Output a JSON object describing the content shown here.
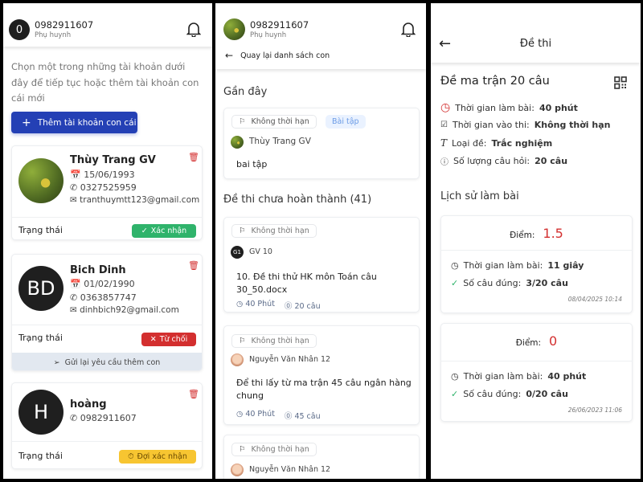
{
  "screen1": {
    "header": {
      "avatar_initial": "0",
      "phone": "0982911607",
      "role": "Phụ huynh"
    },
    "description": "Chọn một trong những tài khoản dưới đây để tiếp tục hoặc thêm tài khoản con cái mới",
    "add_button": "Thêm tài khoản con cái",
    "status_label": "Trạng thái",
    "children": [
      {
        "name": "Thùy Trang GV",
        "dob": "15/06/1993",
        "phone": "0327525959",
        "email": "tranthuymtt123@gmail.com",
        "status": "Xác nhận",
        "status_color": "#2fb36b"
      },
      {
        "initials": "BD",
        "name": "Bich Dinh",
        "dob": "01/02/1990",
        "phone": "0363857747",
        "email": "dinhbich92@gmail.com",
        "status": "Từ chối",
        "status_color": "#d32f2f",
        "resend": "Gửi lại yêu cầu thêm con"
      },
      {
        "initials": "H",
        "name": "hoàng",
        "phone": "0982911607",
        "status": "Đợi xác nhận",
        "status_color": "#f7c531"
      }
    ]
  },
  "screen2": {
    "header": {
      "phone": "0982911607",
      "role": "Phụ huynh",
      "back": "Quay lại danh sách con"
    },
    "recent_title": "Gần đây",
    "recent": {
      "deadline": "Không thời hạn",
      "type": "Bài tập",
      "author": "Thùy Trang GV",
      "title": "bai tập"
    },
    "incomplete_title": "Đề thi chưa hoàn thành (41)",
    "exams": [
      {
        "deadline": "Không thời hạn",
        "author_initials": "G1",
        "author": "GV 10",
        "title": "10. Đề thi thử HK môn Toán câu 30_50.docx",
        "duration": "40 Phút",
        "questions": "20 câu"
      },
      {
        "deadline": "Không thời hạn",
        "author": "Nguyễn Văn Nhân 12",
        "title": "Để thi lấy từ ma trận 45 câu ngân hàng chung",
        "duration": "40 Phút",
        "questions": "45 câu"
      },
      {
        "deadline": "Không thời hạn",
        "author": "Nguyễn Văn Nhân 12"
      }
    ]
  },
  "screen3": {
    "header_title": "Đề thi",
    "exam_title": "Đề ma trận 20 câu",
    "info": [
      {
        "label": "Thời gian làm bài:",
        "value": "40 phút",
        "icon": "clock-icon"
      },
      {
        "label": "Thời gian vào thi:",
        "value": "Không thời hạn",
        "icon": "calendar-check-icon"
      },
      {
        "label": "Loại đề:",
        "value": "Trắc nghiệm",
        "icon": "text-type-icon"
      },
      {
        "label": "Số lượng câu hỏi:",
        "value": "20 câu",
        "icon": "question-icon"
      }
    ],
    "history_title": "Lịch sử làm bài",
    "score_label": "Điểm:",
    "time_label": "Thời gian làm bài:",
    "correct_label": "Số câu đúng:",
    "attempts": [
      {
        "score": "1.5",
        "time": "11 giây",
        "correct": "3/20 câu",
        "date": "08/04/2025 10:14"
      },
      {
        "score": "0",
        "time": "40 phút",
        "correct": "0/20 câu",
        "date": "26/06/2023 11:06"
      }
    ],
    "accent": "#d32f2f"
  }
}
